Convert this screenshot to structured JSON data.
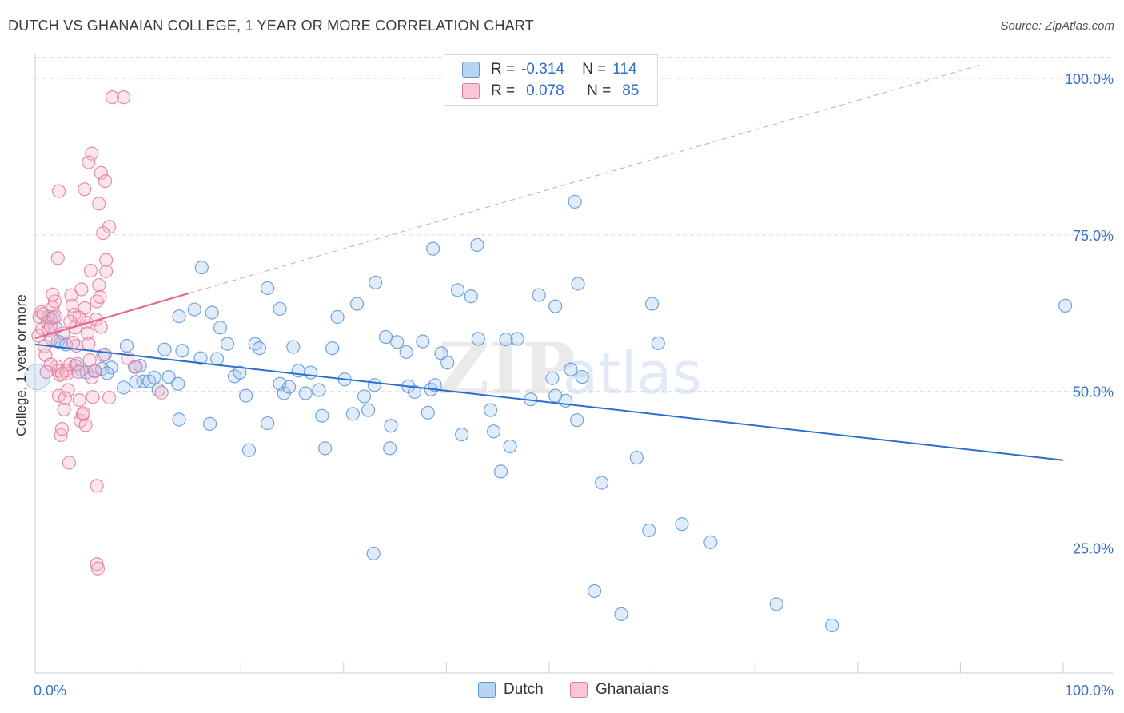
{
  "title": "DUTCH VS GHANAIAN COLLEGE, 1 YEAR OR MORE CORRELATION CHART",
  "source": "Source: ZipAtlas.com",
  "watermark": {
    "part1": "ZIP",
    "part2": "atlas"
  },
  "legend": {
    "rows": [
      {
        "r_label": "R =",
        "r_value": "-0.314",
        "n_label": "N =",
        "n_value": "114"
      },
      {
        "r_label": "R =",
        "r_value": "0.078",
        "n_label": "N =",
        "n_value": "85"
      }
    ]
  },
  "bottom_legend": {
    "dutch": "Dutch",
    "ghanaians": "Ghanaians"
  },
  "colors": {
    "dutch_fill": "#a9c8f0",
    "dutch_stroke": "#5b95d8",
    "dutch_line": "#2b6fce",
    "ghana_fill": "#f6b8cb",
    "ghana_stroke": "#e27a9f",
    "ghana_line": "#e06a92",
    "grid": "#dddddd",
    "axis_text": "#3a72c8"
  },
  "chart_data": {
    "type": "scatter",
    "xlabel": "",
    "ylabel": "College, 1 year or more",
    "xlim": [
      0,
      100
    ],
    "ylim": [
      5,
      105
    ],
    "x_tick_labels": [
      {
        "x": 0,
        "label": "0.0%"
      },
      {
        "x": 100,
        "label": "100.0%"
      }
    ],
    "y_tick_labels": [
      {
        "y": 25,
        "label": "25.0%"
      },
      {
        "y": 50,
        "label": "50.0%"
      },
      {
        "y": 75,
        "label": "75.0%"
      },
      {
        "y": 100,
        "label": "100.0%"
      }
    ],
    "grid": "horizontal dashed",
    "legend_position": "top-center",
    "series": [
      {
        "name": "Dutch",
        "r": -0.314,
        "n": 114,
        "trend": {
          "x": [
            0,
            100
          ],
          "y": [
            57.5,
            39.0
          ]
        },
        "points": [
          [
            1.5,
            61.7
          ],
          [
            1.3,
            62.0
          ],
          [
            2.0,
            60.2
          ],
          [
            2.5,
            57.8
          ],
          [
            2.2,
            58.0
          ],
          [
            3.0,
            57.5
          ],
          [
            3.9,
            54.1
          ],
          [
            4.5,
            53.4
          ],
          [
            5.0,
            53.0
          ],
          [
            5.8,
            53.2
          ],
          [
            6.5,
            53.6
          ],
          [
            7.4,
            53.8
          ],
          [
            7.0,
            52.9
          ],
          [
            8.6,
            50.6
          ],
          [
            8.9,
            57.3
          ],
          [
            9.7,
            53.9
          ],
          [
            10.2,
            54.1
          ],
          [
            10.5,
            51.6
          ],
          [
            11.1,
            51.6
          ],
          [
            11.6,
            52.2
          ],
          [
            12.0,
            50.2
          ],
          [
            12.6,
            56.7
          ],
          [
            13.0,
            52.3
          ],
          [
            13.9,
            51.2
          ],
          [
            14.3,
            56.5
          ],
          [
            14.0,
            62.0
          ],
          [
            15.5,
            63.1
          ],
          [
            16.1,
            55.3
          ],
          [
            16.2,
            69.8
          ],
          [
            17.2,
            62.6
          ],
          [
            17.7,
            55.2
          ],
          [
            18.0,
            60.2
          ],
          [
            18.7,
            57.6
          ],
          [
            19.4,
            52.4
          ],
          [
            19.9,
            53.0
          ],
          [
            20.5,
            49.3
          ],
          [
            20.8,
            40.6
          ],
          [
            21.4,
            57.6
          ],
          [
            21.8,
            56.9
          ],
          [
            22.6,
            44.9
          ],
          [
            23.8,
            51.2
          ],
          [
            22.6,
            66.5
          ],
          [
            23.8,
            63.2
          ],
          [
            24.2,
            49.7
          ],
          [
            24.7,
            50.7
          ],
          [
            25.6,
            53.3
          ],
          [
            26.3,
            49.7
          ],
          [
            27.6,
            50.2
          ],
          [
            27.9,
            46.1
          ],
          [
            28.2,
            40.9
          ],
          [
            28.9,
            56.9
          ],
          [
            29.4,
            61.9
          ],
          [
            30.1,
            51.9
          ],
          [
            30.9,
            46.4
          ],
          [
            31.3,
            64.0
          ],
          [
            32.0,
            49.2
          ],
          [
            32.4,
            47.0
          ],
          [
            33.0,
            51.0
          ],
          [
            33.1,
            67.4
          ],
          [
            34.1,
            58.7
          ],
          [
            34.6,
            44.5
          ],
          [
            34.5,
            40.9
          ],
          [
            35.2,
            57.9
          ],
          [
            36.1,
            56.3
          ],
          [
            36.3,
            50.8
          ],
          [
            36.9,
            49.9
          ],
          [
            37.7,
            58.0
          ],
          [
            38.5,
            50.3
          ],
          [
            38.9,
            51.0
          ],
          [
            39.5,
            56.1
          ],
          [
            40.1,
            54.6
          ],
          [
            38.7,
            72.8
          ],
          [
            41.5,
            43.1
          ],
          [
            41.1,
            66.2
          ],
          [
            42.4,
            65.2
          ],
          [
            43.0,
            73.4
          ],
          [
            43.1,
            58.4
          ],
          [
            44.3,
            47.0
          ],
          [
            44.6,
            43.6
          ],
          [
            45.3,
            37.2
          ],
          [
            45.8,
            58.3
          ],
          [
            46.2,
            41.2
          ],
          [
            46.9,
            58.4
          ],
          [
            48.2,
            48.7
          ],
          [
            49.0,
            65.4
          ],
          [
            50.3,
            52.1
          ],
          [
            50.6,
            63.6
          ],
          [
            50.6,
            49.3
          ],
          [
            51.6,
            48.5
          ],
          [
            52.1,
            53.5
          ],
          [
            52.7,
            45.4
          ],
          [
            53.2,
            52.3
          ],
          [
            52.8,
            67.2
          ],
          [
            52.5,
            80.3
          ],
          [
            55.1,
            35.4
          ],
          [
            58.5,
            39.4
          ],
          [
            60.0,
            64.0
          ],
          [
            60.6,
            57.7
          ],
          [
            59.7,
            27.8
          ],
          [
            62.9,
            28.8
          ],
          [
            65.7,
            25.9
          ],
          [
            54.4,
            18.1
          ],
          [
            57.0,
            14.4
          ],
          [
            72.1,
            16.0
          ],
          [
            77.5,
            12.6
          ],
          [
            100.2,
            63.7
          ],
          [
            17.0,
            44.8
          ],
          [
            14.0,
            45.5
          ],
          [
            9.8,
            51.5
          ],
          [
            6.8,
            55.9
          ],
          [
            26.8,
            53.0
          ],
          [
            25.1,
            57.1
          ],
          [
            38.2,
            46.6
          ],
          [
            32.9,
            24.1
          ]
        ]
      },
      {
        "name": "Ghanaians",
        "r": 0.078,
        "n": 85,
        "trend": {
          "x": [
            0,
            15
          ],
          "y": [
            58.5,
            65.7
          ],
          "extended": {
            "x": [
              0,
              100
            ],
            "y": [
              58.5,
              106.0
            ]
          }
        },
        "points": [
          [
            0.3,
            58.9
          ],
          [
            0.4,
            61.9
          ],
          [
            0.6,
            62.7
          ],
          [
            0.7,
            60.0
          ],
          [
            0.9,
            57.2
          ],
          [
            1.0,
            55.8
          ],
          [
            0.8,
            62.4
          ],
          [
            1.2,
            61.0
          ],
          [
            1.3,
            59.8
          ],
          [
            1.5,
            60.4
          ],
          [
            1.6,
            58.4
          ],
          [
            1.7,
            63.4
          ],
          [
            1.8,
            61.8
          ],
          [
            1.9,
            64.4
          ],
          [
            2.0,
            62.0
          ],
          [
            2.1,
            54.0
          ],
          [
            2.2,
            53.3
          ],
          [
            2.4,
            52.6
          ],
          [
            2.3,
            49.3
          ],
          [
            2.5,
            43.0
          ],
          [
            2.6,
            44.0
          ],
          [
            2.8,
            47.1
          ],
          [
            3.0,
            53.3
          ],
          [
            3.1,
            52.8
          ],
          [
            3.4,
            54.3
          ],
          [
            3.2,
            50.2
          ],
          [
            3.5,
            65.4
          ],
          [
            3.6,
            63.7
          ],
          [
            3.8,
            62.3
          ],
          [
            3.9,
            60.2
          ],
          [
            4.0,
            57.3
          ],
          [
            4.1,
            54.4
          ],
          [
            4.2,
            53.1
          ],
          [
            4.3,
            48.6
          ],
          [
            4.4,
            45.3
          ],
          [
            4.6,
            46.3
          ],
          [
            4.7,
            46.5
          ],
          [
            4.5,
            66.3
          ],
          [
            4.8,
            63.3
          ],
          [
            5.0,
            61.0
          ],
          [
            5.1,
            59.3
          ],
          [
            5.2,
            57.6
          ],
          [
            5.3,
            55.0
          ],
          [
            5.5,
            52.2
          ],
          [
            5.6,
            49.1
          ],
          [
            5.8,
            53.3
          ],
          [
            5.9,
            61.5
          ],
          [
            6.0,
            64.4
          ],
          [
            6.2,
            67.0
          ],
          [
            6.3,
            65.1
          ],
          [
            6.4,
            60.3
          ],
          [
            6.6,
            55.8
          ],
          [
            7.2,
            49.0
          ],
          [
            6.9,
            69.2
          ],
          [
            6.9,
            71.0
          ],
          [
            7.2,
            76.3
          ],
          [
            6.6,
            75.3
          ],
          [
            6.2,
            80.0
          ],
          [
            6.4,
            84.9
          ],
          [
            6.8,
            83.6
          ],
          [
            5.5,
            88.0
          ],
          [
            5.2,
            86.6
          ],
          [
            4.8,
            82.3
          ],
          [
            2.3,
            82.0
          ],
          [
            2.2,
            71.3
          ],
          [
            1.7,
            65.5
          ],
          [
            1.5,
            54.3
          ],
          [
            2.9,
            48.9
          ],
          [
            3.3,
            38.6
          ],
          [
            6.0,
            34.9
          ],
          [
            6.0,
            22.4
          ],
          [
            6.1,
            21.7
          ],
          [
            7.5,
            97.0
          ],
          [
            8.6,
            97.0
          ],
          [
            2.7,
            59.3
          ],
          [
            2.6,
            52.8
          ],
          [
            3.7,
            57.8
          ],
          [
            4.9,
            44.6
          ],
          [
            1.1,
            53.1
          ],
          [
            12.3,
            49.8
          ],
          [
            9.8,
            53.9
          ],
          [
            9.0,
            55.3
          ],
          [
            5.4,
            69.3
          ],
          [
            4.3,
            61.8
          ],
          [
            3.4,
            61.2
          ]
        ]
      }
    ]
  }
}
